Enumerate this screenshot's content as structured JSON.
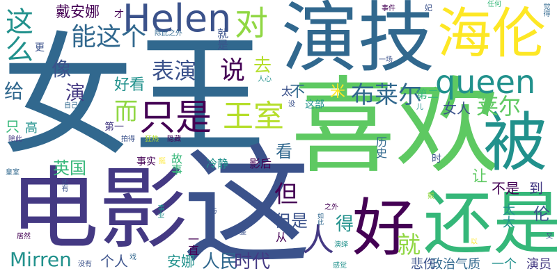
{
  "palette": {
    "dark_purple": "#440154",
    "indigo": "#3b528b",
    "steel_blue": "#31688e",
    "teal": "#21918c",
    "green": "#35b779",
    "lime": "#90d743",
    "yellow": "#fde725"
  },
  "words": [
    {
      "text": "女王",
      "color": "#31688e"
    },
    {
      "text": "喜欢",
      "color": "#5ec962"
    },
    {
      "text": "电影",
      "color": "#443983"
    },
    {
      "text": "这",
      "color": "#3b528b"
    },
    {
      "text": "演技",
      "color": "#31688e"
    },
    {
      "text": "海伦",
      "color": "#fde725"
    },
    {
      "text": "被",
      "color": "#21918c"
    },
    {
      "text": "还是",
      "color": "#35b779"
    },
    {
      "text": "好",
      "color": "#440154"
    },
    {
      "text": "Helen",
      "color": "#3b528b"
    },
    {
      "text": "queen",
      "color": "#21918c"
    },
    {
      "text": "这么",
      "color": "#21918c"
    },
    {
      "text": "对",
      "color": "#90d743"
    },
    {
      "text": "只是",
      "color": "#440154"
    },
    {
      "text": "王室",
      "color": "#b5de2b"
    },
    {
      "text": "能这个",
      "color": "#31688e"
    },
    {
      "text": "表演",
      "color": "#3b528b"
    },
    {
      "text": "说",
      "color": "#440154"
    },
    {
      "text": "布莱尔",
      "color": "#31688e"
    },
    {
      "text": "莱尔",
      "color": "#5ec962"
    },
    {
      "text": "戴安娜",
      "color": "#440154"
    },
    {
      "text": "Mirren",
      "color": "#21918c"
    },
    {
      "text": "人民",
      "color": "#31688e"
    },
    {
      "text": "时代",
      "color": "#443983"
    },
    {
      "text": "但是",
      "color": "#3b528b"
    },
    {
      "text": "人",
      "color": "#443983"
    },
    {
      "text": "就",
      "color": "#90d743"
    },
    {
      "text": "但",
      "color": "#440154"
    },
    {
      "text": "像",
      "color": "#3b528b"
    },
    {
      "text": "给",
      "color": "#31688e"
    },
    {
      "text": "演",
      "color": "#443983"
    },
    {
      "text": "而",
      "color": "#90d743"
    },
    {
      "text": "好看",
      "color": "#21918c"
    },
    {
      "text": "去",
      "color": "#b5de2b"
    },
    {
      "text": "米",
      "color": "#fde725"
    },
    {
      "text": "不",
      "color": "#31688e"
    },
    {
      "text": "女人",
      "color": "#3b528b"
    },
    {
      "text": "英国",
      "color": "#35b779"
    },
    {
      "text": "得",
      "color": "#21918c"
    },
    {
      "text": "让",
      "color": "#5ec962"
    },
    {
      "text": "不是",
      "color": "#440154"
    },
    {
      "text": "到",
      "color": "#443983"
    },
    {
      "text": "伦",
      "color": "#3b528b"
    },
    {
      "text": "安娜",
      "color": "#21918c"
    },
    {
      "text": "个人",
      "color": "#3b528b"
    },
    {
      "text": "一直",
      "color": "#440154"
    },
    {
      "text": "政治气质",
      "color": "#31688e"
    },
    {
      "text": "演员",
      "color": "#443983"
    },
    {
      "text": "一个",
      "color": "#21918c"
    },
    {
      "text": "悲伤",
      "color": "#3b528b"
    },
    {
      "text": "看",
      "color": "#31688e"
    },
    {
      "text": "只",
      "color": "#35b779"
    },
    {
      "text": "高",
      "color": "#21918c"
    },
    {
      "text": "第一",
      "color": "#443983"
    },
    {
      "text": "这部",
      "color": "#21918c"
    },
    {
      "text": "第二",
      "color": "#35b779"
    },
    {
      "text": "太",
      "color": "#3b528b"
    },
    {
      "text": "事实",
      "color": "#440154"
    },
    {
      "text": "冷静",
      "color": "#21918c"
    },
    {
      "text": "影后",
      "color": "#440154"
    },
    {
      "text": "故事",
      "color": "#35b779"
    },
    {
      "text": "历史",
      "color": "#31688e"
    },
    {
      "text": "时",
      "color": "#3b528b"
    },
    {
      "text": "太太",
      "color": "#21918c"
    },
    {
      "text": "从",
      "color": "#440154"
    },
    {
      "text": "更",
      "color": "#3b528b"
    },
    {
      "text": "才",
      "color": "#440154"
    },
    {
      "text": "就是",
      "color": "#3b528b"
    },
    {
      "text": "除此之外",
      "color": "#31688e"
    },
    {
      "text": "事件",
      "color": "#440154"
    },
    {
      "text": "妃",
      "color": "#3b528b"
    },
    {
      "text": "任何",
      "color": "#35b779"
    },
    {
      "text": "觉得",
      "color": "#31688e"
    },
    {
      "text": "一场",
      "color": "#3b528b"
    },
    {
      "text": "人心",
      "color": "#21918c"
    },
    {
      "text": "儿",
      "color": "#21918c"
    },
    {
      "text": "没",
      "color": "#3b528b"
    },
    {
      "text": "自己",
      "color": "#31688e"
    },
    {
      "text": "拍得",
      "color": "#3b528b"
    },
    {
      "text": "狂热",
      "color": "#b5de2b"
    },
    {
      "text": "隐藏",
      "color": "#440154"
    },
    {
      "text": "挺",
      "color": "#fde725"
    },
    {
      "text": "除此",
      "color": "#443983"
    },
    {
      "text": "皇室",
      "color": "#31688e"
    },
    {
      "text": "还有",
      "color": "#3b528b"
    },
    {
      "text": "事业",
      "color": "#21918c"
    },
    {
      "text": "与",
      "color": "#3b528b"
    },
    {
      "text": "之外",
      "color": "#440154"
    },
    {
      "text": "如此",
      "color": "#31688e"
    },
    {
      "text": "工整",
      "color": "#3b528b"
    },
    {
      "text": "戴",
      "color": "#90d743"
    },
    {
      "text": "演绎",
      "color": "#21918c"
    },
    {
      "text": "居然",
      "color": "#440154"
    },
    {
      "text": "没有",
      "color": "#3b528b"
    },
    {
      "text": "戏",
      "color": "#31688e"
    },
    {
      "text": "感觉",
      "color": "#21918c"
    },
    {
      "text": "以",
      "color": "#fde725"
    },
    {
      "text": "又",
      "color": "#3b528b"
    }
  ]
}
